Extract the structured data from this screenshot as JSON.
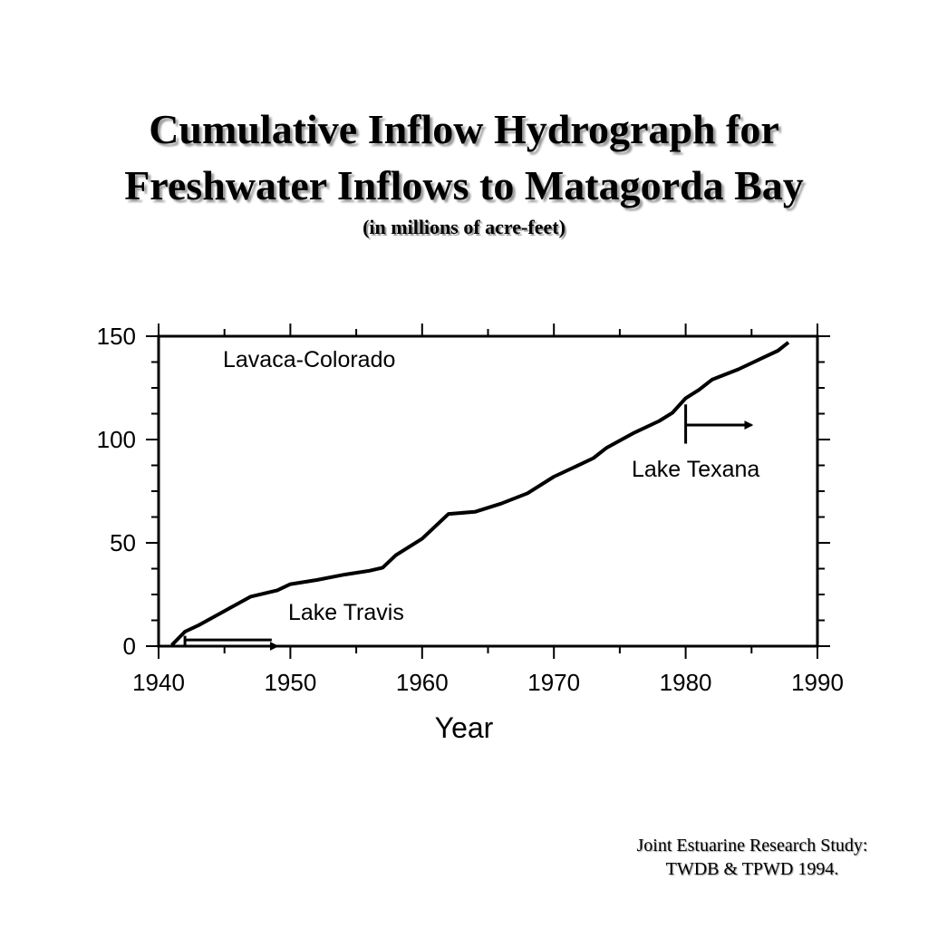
{
  "slide": {
    "title_line1": "Cumulative Inflow Hydrograph for",
    "title_line2": "Freshwater Inflows to Matagorda Bay",
    "subtitle": "(in millions of acre-feet)",
    "source_line1": "Joint Estuarine Research Study:",
    "source_line2": "TWDB & TPWD 1994."
  },
  "chart_data": {
    "type": "line",
    "title": "",
    "xlabel": "Year",
    "ylabel": "",
    "xlim": [
      1940,
      1990
    ],
    "ylim": [
      0,
      150
    ],
    "xticks": [
      1940,
      1950,
      1960,
      1970,
      1980,
      1990
    ],
    "yticks": [
      0,
      50,
      100,
      150
    ],
    "grid": false,
    "series": [
      {
        "name": "Lavaca-Colorado",
        "x": [
          1941,
          1942,
          1943,
          1945,
          1947,
          1949,
          1950,
          1952,
          1954,
          1956,
          1957,
          1958,
          1960,
          1961,
          1962,
          1964,
          1966,
          1968,
          1970,
          1972,
          1973,
          1974,
          1976,
          1978,
          1979,
          1980,
          1981,
          1982,
          1984,
          1986,
          1987,
          1987.8
        ],
        "values": [
          0.5,
          7,
          10,
          17,
          24,
          27,
          30,
          32,
          34.5,
          36.5,
          38,
          44,
          52,
          58,
          64,
          65,
          69,
          74,
          82,
          88,
          91,
          96,
          103,
          109,
          113,
          120,
          124,
          129,
          134,
          140,
          143,
          147
        ]
      }
    ],
    "annotations": [
      {
        "label": "Lake Travis",
        "x": 1942,
        "arrow_to": 1949
      },
      {
        "label": "Lake Texana",
        "x": 1980,
        "arrow_to": 1985
      }
    ]
  }
}
